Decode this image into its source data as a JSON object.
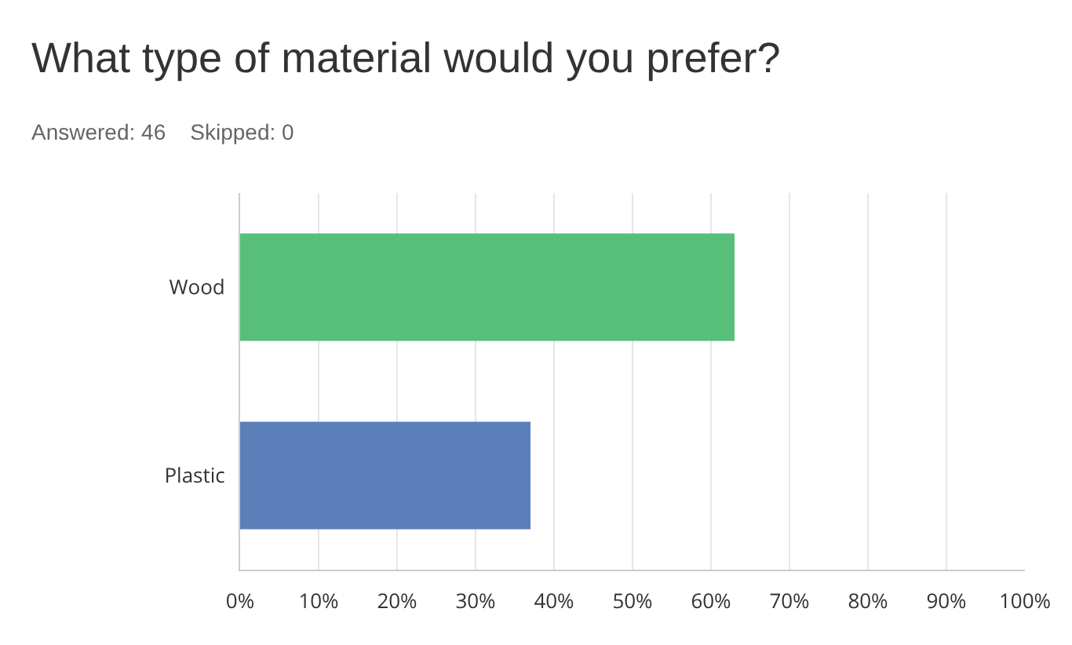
{
  "chart_data": {
    "type": "bar",
    "orientation": "horizontal",
    "title": "What type of material would you prefer?",
    "subtitle": "Answered: 46    Skipped: 0",
    "categories": [
      "Wood",
      "Plastic"
    ],
    "values": [
      63,
      37
    ],
    "colors": [
      "#57bf79",
      "#5b7fb9"
    ],
    "xlim": [
      0,
      100
    ],
    "xticks": [
      {
        "value": 0,
        "label": "0%"
      },
      {
        "value": 10,
        "label": "10%"
      },
      {
        "value": 20,
        "label": "20%"
      },
      {
        "value": 30,
        "label": "30%"
      },
      {
        "value": 40,
        "label": "40%"
      },
      {
        "value": 50,
        "label": "50%"
      },
      {
        "value": 60,
        "label": "60%"
      },
      {
        "value": 70,
        "label": "70%"
      },
      {
        "value": 80,
        "label": "80%"
      },
      {
        "value": 90,
        "label": "90%"
      },
      {
        "value": 100,
        "label": "100%"
      }
    ],
    "grid": "x"
  }
}
